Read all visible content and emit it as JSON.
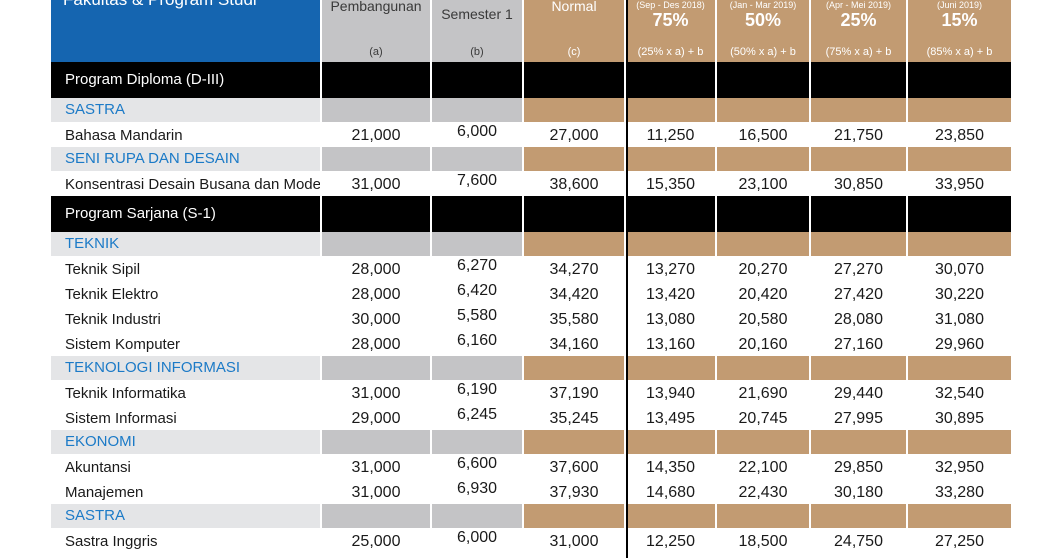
{
  "header": {
    "label": "Fakultas & Program Studi",
    "columns": [
      {
        "title": "Pembangunan",
        "sub": "(a)"
      },
      {
        "title": "Semester 1",
        "sub": "(b)"
      },
      {
        "title": "Normal",
        "sub": "(c)"
      },
      {
        "period": "(Sep - Des 2018)",
        "pct": "75%",
        "formula": "(25% x a) + b"
      },
      {
        "period": "(Jan - Mar 2019)",
        "pct": "50%",
        "formula": "(50% x a) + b"
      },
      {
        "period": "(Apr - Mei 2019)",
        "pct": "25%",
        "formula": "(75% x a) + b"
      },
      {
        "period": "(Juni 2019)",
        "pct": "15%",
        "formula": "(85% x a) + b"
      }
    ]
  },
  "sections": [
    {
      "program": "Program Diploma (D-III)"
    },
    {
      "category": "SASTRA"
    },
    {
      "row": [
        "Bahasa Mandarin",
        "21,000",
        "6,000",
        "27,000",
        "11,250",
        "16,500",
        "21,750",
        "23,850"
      ]
    },
    {
      "category": "SENI RUPA DAN DESAIN"
    },
    {
      "row": [
        "Konsentrasi Desain Busana dan Mode",
        "31,000",
        "7,600",
        "38,600",
        "15,350",
        "23,100",
        "30,850",
        "33,950"
      ]
    },
    {
      "program": "Program Sarjana (S-1)"
    },
    {
      "category": "TEKNIK"
    },
    {
      "row": [
        "Teknik Sipil",
        "28,000",
        "6,270",
        "34,270",
        "13,270",
        "20,270",
        "27,270",
        "30,070"
      ]
    },
    {
      "row": [
        "Teknik Elektro",
        "28,000",
        "6,420",
        "34,420",
        "13,420",
        "20,420",
        "27,420",
        "30,220"
      ]
    },
    {
      "row": [
        "Teknik Industri",
        "30,000",
        "5,580",
        "35,580",
        "13,080",
        "20,580",
        "28,080",
        "31,080"
      ]
    },
    {
      "row": [
        "Sistem Komputer",
        "28,000",
        "6,160",
        "34,160",
        "13,160",
        "20,160",
        "27,160",
        "29,960"
      ]
    },
    {
      "category": "TEKNOLOGI INFORMASI"
    },
    {
      "row": [
        "Teknik Informatika",
        "31,000",
        "6,190",
        "37,190",
        "13,940",
        "21,690",
        "29,440",
        "32,540"
      ]
    },
    {
      "row": [
        "Sistem Informasi",
        "29,000",
        "6,245",
        "35,245",
        "13,495",
        "20,745",
        "27,995",
        "30,895"
      ]
    },
    {
      "category": "EKONOMI"
    },
    {
      "row": [
        "Akuntansi",
        "31,000",
        "6,600",
        "37,600",
        "14,350",
        "22,100",
        "29,850",
        "32,950"
      ]
    },
    {
      "row": [
        "Manajemen",
        "31,000",
        "6,930",
        "37,930",
        "14,680",
        "22,430",
        "30,180",
        "33,280"
      ]
    },
    {
      "category": "SASTRA"
    },
    {
      "row": [
        "Sastra Inggris",
        "25,000",
        "6,000",
        "31,000",
        "12,250",
        "18,500",
        "24,750",
        "27,250"
      ]
    }
  ]
}
